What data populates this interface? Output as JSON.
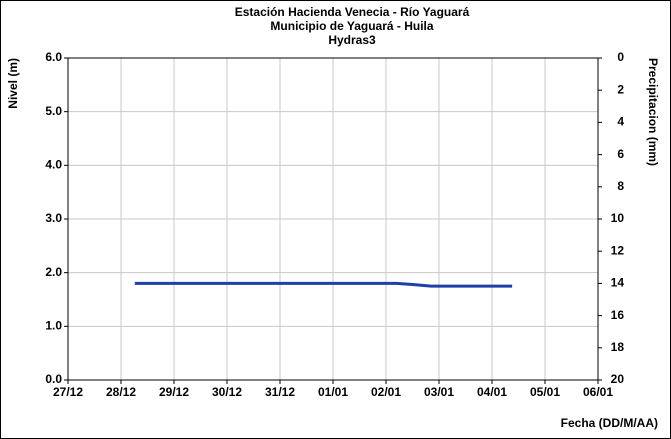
{
  "chart_data": {
    "type": "line",
    "title": [
      "Estación Hacienda Venecia - Río  Yaguará",
      "Municipio de Yaguará - Huila",
      "Hydras3"
    ],
    "ylabel": "Nivel (m)",
    "y2label": "Precipitacion (mm)",
    "xlabel": "Fecha (DD/M/AA)",
    "x": [
      1.26,
      6.2,
      6.5,
      6.85,
      8.38
    ],
    "values": [
      1.8,
      1.8,
      1.78,
      1.75,
      1.75
    ],
    "color": "#1f3fa8",
    "xlim": [
      0,
      10
    ],
    "xticks": [
      {
        "value": 0,
        "label": "27/12"
      },
      {
        "value": 1,
        "label": "28/12"
      },
      {
        "value": 2,
        "label": "29/12"
      },
      {
        "value": 3,
        "label": "30/12"
      },
      {
        "value": 4,
        "label": "31/12"
      },
      {
        "value": 5,
        "label": "01/01"
      },
      {
        "value": 6,
        "label": "02/01"
      },
      {
        "value": 7,
        "label": "03/01"
      },
      {
        "value": 8,
        "label": "04/01"
      },
      {
        "value": 9,
        "label": "05/01"
      },
      {
        "value": 10,
        "label": "06/01"
      }
    ],
    "ylim": [
      0,
      6
    ],
    "yticks": [
      {
        "value": 0,
        "label": "0.0"
      },
      {
        "value": 1,
        "label": "1.0"
      },
      {
        "value": 2,
        "label": "2.0"
      },
      {
        "value": 3,
        "label": "3.0"
      },
      {
        "value": 4,
        "label": "4.0"
      },
      {
        "value": 5,
        "label": "5.0"
      },
      {
        "value": 6,
        "label": "6.0"
      }
    ],
    "y2lim": [
      20,
      0
    ],
    "y2ticks": [
      0,
      2,
      4,
      6,
      8,
      10,
      12,
      14,
      16,
      18,
      20
    ],
    "grid": true
  }
}
